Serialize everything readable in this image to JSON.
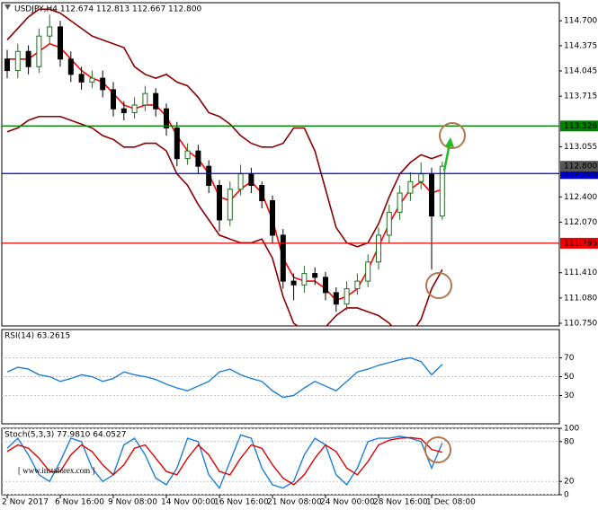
{
  "chart_data": [
    {
      "type": "candlestick",
      "title": "USDJPY,H4  112.674 112.813 112.667 112.800",
      "categories": [
        "2 Nov 2017",
        null,
        null,
        null,
        null,
        "6 Nov 16:00",
        null,
        null,
        null,
        null,
        "9 Nov 08:00",
        null,
        null,
        null,
        null,
        "14 Nov 00:00",
        null,
        null,
        null,
        null,
        "16 Nov 16:00",
        null,
        null,
        null,
        null,
        "21 Nov 08:00",
        null,
        null,
        null,
        null,
        "24 Nov 00:00",
        null,
        null,
        null,
        null,
        "28 Nov 16:00",
        null,
        null,
        null,
        null,
        "1 Dec 08:00",
        null
      ],
      "open": [
        114.2,
        114.05,
        114.3,
        114.1,
        114.5,
        114.62,
        114.2,
        114.0,
        113.9,
        113.95,
        113.8,
        113.55,
        113.5,
        113.6,
        113.75,
        113.55,
        113.3,
        112.9,
        113.0,
        112.8,
        112.55,
        112.1,
        112.5,
        112.7,
        112.55,
        112.35,
        111.9,
        111.3,
        111.25,
        111.4,
        111.35,
        111.15,
        111.0,
        111.2,
        111.3,
        111.55,
        111.9,
        112.2,
        112.45,
        112.6,
        112.7,
        112.15
      ],
      "high": [
        114.32,
        114.4,
        114.38,
        114.6,
        114.78,
        114.7,
        114.3,
        114.1,
        114.05,
        114.05,
        113.9,
        113.65,
        113.7,
        113.85,
        113.82,
        113.62,
        113.38,
        113.1,
        113.08,
        112.88,
        112.62,
        112.6,
        112.82,
        112.78,
        112.6,
        112.42,
        111.98,
        111.4,
        111.5,
        111.48,
        111.42,
        111.22,
        111.3,
        111.4,
        111.65,
        112.0,
        112.3,
        112.55,
        112.72,
        112.85,
        112.78,
        112.86
      ],
      "low": [
        113.95,
        113.95,
        114.0,
        114.02,
        114.4,
        114.1,
        113.9,
        113.8,
        113.82,
        113.7,
        113.45,
        113.4,
        113.42,
        113.52,
        113.45,
        113.2,
        112.8,
        112.82,
        112.7,
        112.45,
        111.95,
        112.02,
        112.42,
        112.45,
        112.25,
        111.8,
        111.2,
        111.05,
        111.15,
        111.25,
        111.05,
        110.9,
        110.92,
        111.12,
        111.22,
        111.45,
        111.8,
        112.1,
        112.35,
        112.5,
        111.45,
        112.1
      ],
      "close": [
        114.05,
        114.3,
        114.1,
        114.5,
        114.62,
        114.2,
        114.0,
        113.9,
        113.95,
        113.8,
        113.55,
        113.5,
        113.6,
        113.75,
        113.55,
        113.3,
        112.9,
        113.0,
        112.8,
        112.55,
        112.1,
        112.5,
        112.7,
        112.55,
        112.35,
        111.9,
        111.3,
        111.25,
        111.4,
        111.35,
        111.15,
        111.0,
        111.2,
        111.3,
        111.55,
        111.9,
        112.2,
        112.45,
        112.6,
        112.7,
        112.15,
        112.8
      ],
      "up_color": "#1f6f1f",
      "down_color": "#000000",
      "lines": [
        {
          "color": "#8b0000",
          "values": [
            114.45,
            114.6,
            114.75,
            114.85,
            114.85,
            114.8,
            114.7,
            114.6,
            114.5,
            114.45,
            114.4,
            114.35,
            114.1,
            114.0,
            113.95,
            114.0,
            113.9,
            113.85,
            113.7,
            113.5,
            113.45,
            113.35,
            113.2,
            113.1,
            113.05,
            113.05,
            113.1,
            113.3,
            113.3,
            113.0,
            112.5,
            112.0,
            111.8,
            111.75,
            111.8,
            112.05,
            112.4,
            112.7,
            112.85,
            112.95,
            112.9,
            112.95
          ]
        },
        {
          "color": "#8b0000",
          "values": [
            113.25,
            113.3,
            113.4,
            113.45,
            113.45,
            113.45,
            113.4,
            113.35,
            113.3,
            113.2,
            113.15,
            113.05,
            113.05,
            113.1,
            113.1,
            113.0,
            112.7,
            112.55,
            112.3,
            112.1,
            111.9,
            111.85,
            111.8,
            111.8,
            111.85,
            111.6,
            111.1,
            110.75,
            110.65,
            110.65,
            110.7,
            110.85,
            110.95,
            110.95,
            110.9,
            110.85,
            110.75,
            110.6,
            110.6,
            110.8,
            111.2,
            111.45
          ]
        },
        {
          "color": "#ff0000",
          "values": [
            114.2,
            114.2,
            114.2,
            114.3,
            114.4,
            114.35,
            114.2,
            114.05,
            113.95,
            113.9,
            113.75,
            113.6,
            113.55,
            113.6,
            113.6,
            113.45,
            113.2,
            113.0,
            112.9,
            112.7,
            112.4,
            112.35,
            112.5,
            112.6,
            112.45,
            112.1,
            111.6,
            111.35,
            111.3,
            111.3,
            111.2,
            111.05,
            111.1,
            111.2,
            111.45,
            111.75,
            112.05,
            112.3,
            112.5,
            112.6,
            112.45,
            112.5
          ]
        }
      ],
      "hlines": [
        {
          "value": 113.326,
          "color": "#008000"
        },
        {
          "value": 112.705,
          "color": "#0000cc"
        },
        {
          "value": 111.795,
          "color": "#ee0000"
        }
      ],
      "last_price": {
        "value": 112.8,
        "label": "112.800"
      },
      "ylim": [
        110.715,
        114.936
      ],
      "yticks": [
        {
          "value": 110.75,
          "label": "110.750"
        },
        {
          "value": 111.08,
          "label": "111.080"
        },
        {
          "value": 111.41,
          "label": "111.410"
        },
        {
          "value": 112.07,
          "label": "112.070"
        },
        {
          "value": 112.4,
          "label": "112.400"
        },
        113.055,
        113.715,
        114.045,
        114.375,
        {
          "value": 114.7,
          "label": "114.700"
        }
      ]
    },
    {
      "type": "line",
      "title": "RSI(14) 63.2615",
      "series": [
        {
          "color": "#1e7fd8",
          "values": [
            55,
            60,
            58,
            52,
            50,
            45,
            48,
            52,
            50,
            45,
            48,
            55,
            52,
            50,
            47,
            42,
            38,
            35,
            40,
            45,
            55,
            58,
            52,
            48,
            45,
            35,
            28,
            30,
            38,
            45,
            40,
            35,
            45,
            55,
            58,
            62,
            65,
            68,
            70,
            66,
            52,
            63
          ]
        }
      ],
      "ylim": [
        0,
        100
      ],
      "yticks": [
        30,
        50,
        70
      ]
    },
    {
      "type": "line",
      "title": "Stoch(5,3,3) 77.9810 64.0527",
      "series": [
        {
          "color": "#1e7fd8",
          "values": [
            70,
            85,
            60,
            30,
            20,
            50,
            85,
            80,
            40,
            20,
            30,
            75,
            85,
            60,
            25,
            15,
            40,
            85,
            80,
            30,
            10,
            50,
            90,
            85,
            40,
            15,
            10,
            20,
            60,
            85,
            75,
            30,
            15,
            40,
            80,
            85,
            85,
            88,
            85,
            80,
            40,
            78
          ]
        },
        {
          "color": "#e00000",
          "values": [
            65,
            75,
            70,
            55,
            35,
            35,
            60,
            75,
            65,
            45,
            30,
            45,
            70,
            75,
            55,
            35,
            30,
            55,
            75,
            60,
            35,
            30,
            55,
            75,
            70,
            45,
            25,
            15,
            30,
            55,
            75,
            65,
            40,
            30,
            50,
            75,
            82,
            85,
            86,
            84,
            68,
            64
          ]
        }
      ],
      "ylim": [
        0,
        100
      ],
      "yticks": [
        0,
        20,
        80,
        100
      ],
      "watermark": "[  www.instaforex.com  ]"
    }
  ]
}
